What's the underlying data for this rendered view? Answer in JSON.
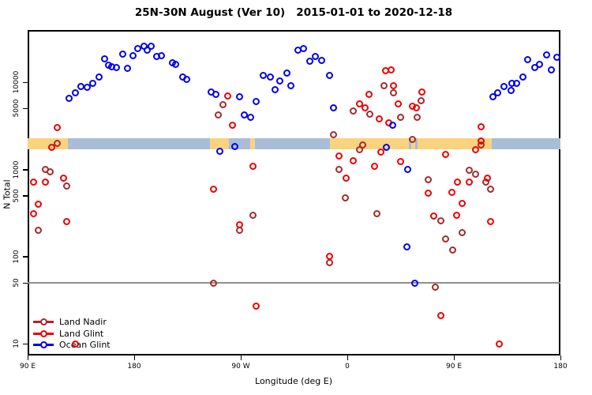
{
  "title": "25N-30N August (Ver 10)   2015-01-01 to 2020-12-18",
  "chart_data": {
    "type": "scatter",
    "title": "25N-30N August (Ver 10)   2015-01-01 to 2020-12-18",
    "xlabel": "Longitude (deg E)",
    "ylabel": "N Total",
    "x_axis": {
      "domain": [
        90,
        540
      ],
      "ticks": [
        {
          "lon": 90,
          "label": "90 E"
        },
        {
          "lon": 180,
          "label": "180"
        },
        {
          "lon": 270,
          "label": "90 W"
        },
        {
          "lon": 360,
          "label": "0"
        },
        {
          "lon": 450,
          "label": "90 E"
        },
        {
          "lon": 540,
          "label": "180"
        }
      ]
    },
    "y_axis": {
      "scale": "log10",
      "range": [
        7.3,
        40000
      ],
      "ticks": [
        {
          "value": 10000,
          "label": "10000"
        },
        {
          "value": 5000,
          "label": "5000"
        },
        {
          "value": 1000,
          "label": "1000"
        },
        {
          "value": 500,
          "label": "500"
        },
        {
          "value": 100,
          "label": "100"
        },
        {
          "value": 50,
          "label": "50"
        },
        {
          "value": 10,
          "label": "10"
        }
      ],
      "grid": false
    },
    "reference_line": {
      "value": 50,
      "color": "#8f8f8f"
    },
    "highlight_band": {
      "n_range": [
        1712,
        2282
      ],
      "colors": {
        "land": "#FAD37E",
        "ocean": "#A9BDD8"
      },
      "segments": [
        {
          "from": 90,
          "to": 124,
          "surface": "land"
        },
        {
          "from": 124,
          "to": 244,
          "surface": "ocean"
        },
        {
          "from": 244,
          "to": 260,
          "surface": "land"
        },
        {
          "from": 260,
          "to": 278,
          "surface": "ocean"
        },
        {
          "from": 278,
          "to": 282,
          "surface": "land"
        },
        {
          "from": 282,
          "to": 345,
          "surface": "ocean"
        },
        {
          "from": 345,
          "to": 412,
          "surface": "land"
        },
        {
          "from": 412,
          "to": 414,
          "surface": "ocean"
        },
        {
          "from": 414,
          "to": 417.5,
          "surface": "land"
        },
        {
          "from": 417.5,
          "to": 419,
          "surface": "ocean"
        },
        {
          "from": 419,
          "to": 482,
          "surface": "land"
        },
        {
          "from": 482,
          "to": 540,
          "surface": "ocean"
        }
      ]
    },
    "legend": {
      "position": "bottom-left",
      "entries": [
        "Land Nadir",
        "Land Glint",
        "Ocean Glint"
      ]
    },
    "series": [
      {
        "name": "Land Nadir",
        "color": "#A52A2A",
        "points": [
          [
            114.7,
            2000
          ],
          [
            104.7,
            990
          ],
          [
            108.7,
            930
          ],
          [
            123.3,
            640
          ],
          [
            98.7,
            200
          ],
          [
            254.7,
            5500
          ],
          [
            251.3,
            4200
          ],
          [
            280,
            300
          ],
          [
            268.7,
            200
          ],
          [
            246.7,
            50
          ],
          [
            348,
            2500
          ],
          [
            353.3,
            990
          ],
          [
            358,
            470
          ],
          [
            370,
            1700
          ],
          [
            373.3,
            1900
          ],
          [
            384.7,
            310
          ],
          [
            344.7,
            86
          ],
          [
            391.3,
            9200
          ],
          [
            364.7,
            4700
          ],
          [
            378.7,
            4300
          ],
          [
            398.7,
            7500
          ],
          [
            404.7,
            4000
          ],
          [
            422,
            6100
          ],
          [
            418.7,
            4000
          ],
          [
            414.7,
            2200
          ],
          [
            428,
            770
          ],
          [
            463.3,
            970
          ],
          [
            468,
            880
          ],
          [
            476.7,
            710
          ],
          [
            481.3,
            590
          ],
          [
            438.7,
            260
          ],
          [
            456.7,
            190
          ],
          [
            443.3,
            160
          ],
          [
            448.7,
            120
          ],
          [
            473.3,
            1900
          ],
          [
            434,
            45
          ]
        ]
      },
      {
        "name": "Land Glint",
        "color": "#EE0000",
        "points": [
          [
            115.3,
            3000
          ],
          [
            110,
            1800
          ],
          [
            95.3,
            720
          ],
          [
            105.3,
            710
          ],
          [
            120,
            790
          ],
          [
            98.7,
            400
          ],
          [
            94.7,
            310
          ],
          [
            123.3,
            250
          ],
          [
            130,
            10
          ],
          [
            258.7,
            7000
          ],
          [
            263.3,
            3200
          ],
          [
            280,
            1080
          ],
          [
            246.7,
            590
          ],
          [
            268.7,
            230
          ],
          [
            283.3,
            27
          ],
          [
            344.7,
            100
          ],
          [
            353.3,
            1440
          ],
          [
            364.7,
            1270
          ],
          [
            358.7,
            790
          ],
          [
            383.3,
            1080
          ],
          [
            388,
            1570
          ],
          [
            370,
            5700
          ],
          [
            374.7,
            5100
          ],
          [
            386.7,
            3800
          ],
          [
            392,
            13700
          ],
          [
            394.7,
            3400
          ],
          [
            378,
            7200
          ],
          [
            396.7,
            14000
          ],
          [
            398.7,
            9200
          ],
          [
            403.3,
            5700
          ],
          [
            423.3,
            7800
          ],
          [
            414.7,
            5300
          ],
          [
            418,
            5100
          ],
          [
            405.3,
            1220
          ],
          [
            428,
            530
          ],
          [
            443.3,
            1500
          ],
          [
            448,
            550
          ],
          [
            453.3,
            720
          ],
          [
            463.3,
            720
          ],
          [
            468,
            1700
          ],
          [
            478,
            790
          ],
          [
            433.3,
            290
          ],
          [
            452,
            300
          ],
          [
            456.7,
            410
          ],
          [
            481.3,
            250
          ],
          [
            473.3,
            3100
          ],
          [
            473.3,
            2100
          ],
          [
            438.7,
            21
          ],
          [
            488,
            10
          ]
        ]
      },
      {
        "name": "Ocean Glint",
        "color": "#0000EE",
        "points": [
          [
            125.3,
            6600
          ],
          [
            130,
            7500
          ],
          [
            134.7,
            8900
          ],
          [
            140,
            8700
          ],
          [
            145.3,
            9800
          ],
          [
            150,
            11400
          ],
          [
            155.3,
            18400
          ],
          [
            158,
            15600
          ],
          [
            161.3,
            15000
          ],
          [
            164.7,
            14700
          ],
          [
            170,
            20900
          ],
          [
            174,
            14400
          ],
          [
            178.7,
            20100
          ],
          [
            183.3,
            24600
          ],
          [
            188,
            26200
          ],
          [
            190.7,
            23500
          ],
          [
            194,
            25700
          ],
          [
            199.3,
            19600
          ],
          [
            203.3,
            20000
          ],
          [
            212,
            16600
          ],
          [
            214.7,
            16200
          ],
          [
            220.7,
            11400
          ],
          [
            224,
            10900
          ],
          [
            245.3,
            7800
          ],
          [
            248.7,
            7200
          ],
          [
            268.7,
            6800
          ],
          [
            273.3,
            4200
          ],
          [
            278,
            4000
          ],
          [
            283.3,
            6000
          ],
          [
            288.7,
            12100
          ],
          [
            295.3,
            11600
          ],
          [
            298.7,
            8300
          ],
          [
            303.3,
            10300
          ],
          [
            308.7,
            12900
          ],
          [
            312,
            9200
          ],
          [
            318,
            23500
          ],
          [
            323.3,
            24600
          ],
          [
            328,
            17300
          ],
          [
            333.3,
            19600
          ],
          [
            338,
            17700
          ],
          [
            344.7,
            12100
          ],
          [
            348,
            5100
          ],
          [
            252,
            1630
          ],
          [
            265.3,
            1850
          ],
          [
            398,
            3200
          ],
          [
            393.3,
            1800
          ],
          [
            411.3,
            990
          ],
          [
            410,
            130
          ],
          [
            416.7,
            50
          ],
          [
            483.3,
            6800
          ],
          [
            486.7,
            7500
          ],
          [
            492,
            8900
          ],
          [
            498,
            8000
          ],
          [
            498.7,
            9700
          ],
          [
            503.3,
            9800
          ],
          [
            508,
            11400
          ],
          [
            512,
            18100
          ],
          [
            518,
            14900
          ],
          [
            522,
            16200
          ],
          [
            528,
            20500
          ],
          [
            532,
            14000
          ],
          [
            536.7,
            19200
          ]
        ]
      }
    ]
  }
}
